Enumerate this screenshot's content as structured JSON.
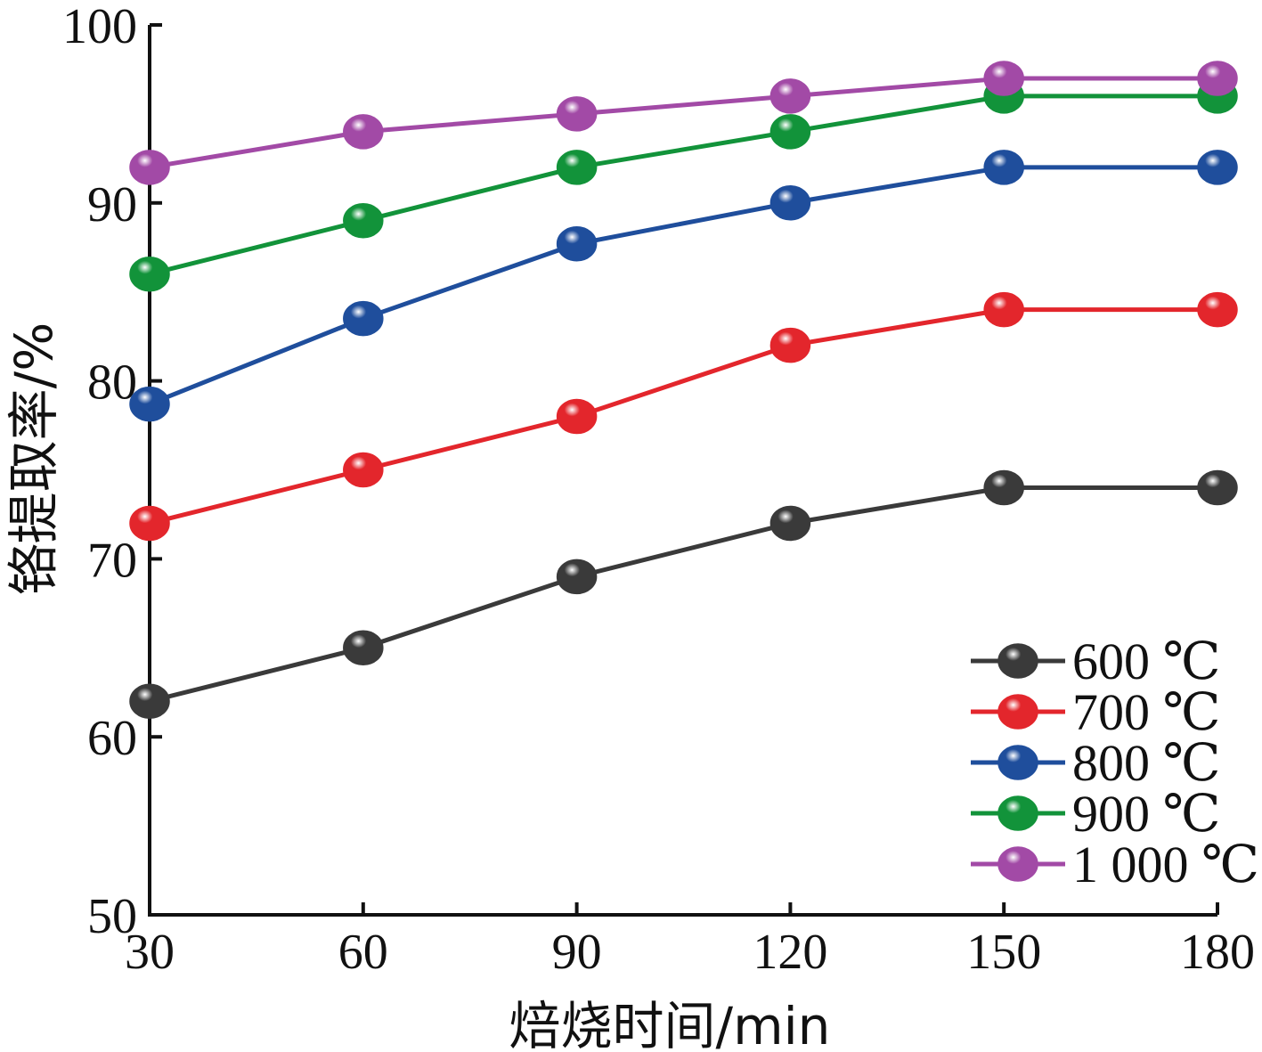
{
  "chart_data": {
    "type": "line",
    "xlabel": "焙烧时间/min",
    "ylabel": "铬提取率/%",
    "x": [
      30,
      60,
      90,
      120,
      150,
      180
    ],
    "xlim": [
      30,
      180
    ],
    "ylim": [
      50,
      100
    ],
    "x_ticks": [
      "30",
      "60",
      "90",
      "120",
      "150",
      "180"
    ],
    "y_ticks": [
      "50",
      "60",
      "70",
      "80",
      "90",
      "100"
    ],
    "grid": false,
    "legend_position": "bottom-right",
    "series": [
      {
        "name": "600 ℃",
        "color": "#3a3a3a",
        "values": [
          62,
          65,
          69,
          72,
          74,
          74
        ]
      },
      {
        "name": "700 ℃",
        "color": "#e3262c",
        "values": [
          72,
          75,
          78,
          82,
          84,
          84
        ]
      },
      {
        "name": "800 ℃",
        "color": "#1f4e9c",
        "values": [
          78.7,
          83.5,
          87.7,
          90,
          92,
          92
        ]
      },
      {
        "name": "900 ℃",
        "color": "#12933a",
        "values": [
          86,
          89,
          92,
          94,
          96,
          96
        ]
      },
      {
        "name": "1 000 ℃",
        "color": "#a24aa6",
        "values": [
          92,
          94,
          95,
          96,
          97,
          97
        ]
      }
    ]
  }
}
